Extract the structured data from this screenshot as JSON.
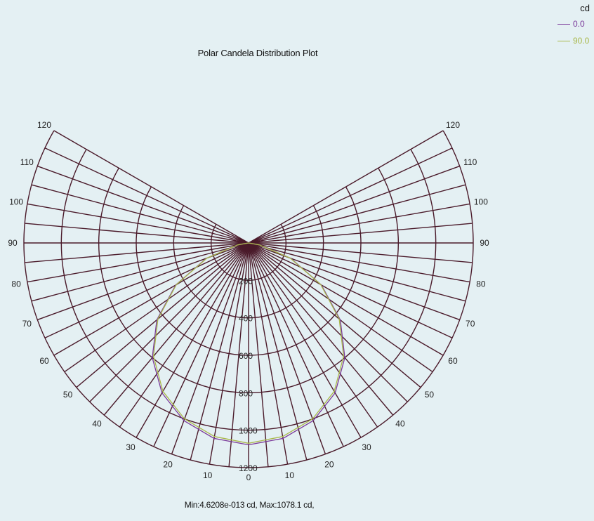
{
  "chart_data": {
    "type": "polar",
    "title": "Polar Candela Distribution Plot",
    "footer": "Min:4.6208e-013 cd, Max:1078.1 cd,",
    "unit": "cd",
    "radial_max": 1200,
    "radial_ticks": [
      200,
      400,
      600,
      800,
      1000,
      1200
    ],
    "radial_tick_labels": [
      "200",
      "400",
      "600",
      "800",
      "1000",
      "1200"
    ],
    "angle_range": [
      0,
      120
    ],
    "angle_step": 5,
    "angle_tick_labels": [
      "0",
      "10",
      "20",
      "30",
      "40",
      "50",
      "60",
      "70",
      "80",
      "90",
      "100",
      "110",
      "120"
    ],
    "angle_label_values": [
      0,
      10,
      20,
      30,
      40,
      50,
      60,
      70,
      80,
      90,
      100,
      110,
      120
    ],
    "series": [
      {
        "name": "0.0",
        "color": "#7a3a9a",
        "angles": [
          0,
          10,
          20,
          30,
          40,
          50,
          60,
          70,
          80,
          90
        ],
        "values": [
          1078,
          1060,
          1010,
          925,
          800,
          640,
          450,
          240,
          60,
          0
        ]
      },
      {
        "name": "90.0",
        "color": "#a9b84a",
        "angles": [
          0,
          10,
          20,
          30,
          40,
          50,
          60,
          70,
          80,
          90
        ],
        "values": [
          1070,
          1050,
          1000,
          915,
          790,
          632,
          445,
          236,
          58,
          0
        ]
      }
    ],
    "grid": true,
    "legend_position": "top-right"
  },
  "colors": {
    "grid": "#4a1a2a",
    "background": "#e4f0f3"
  }
}
